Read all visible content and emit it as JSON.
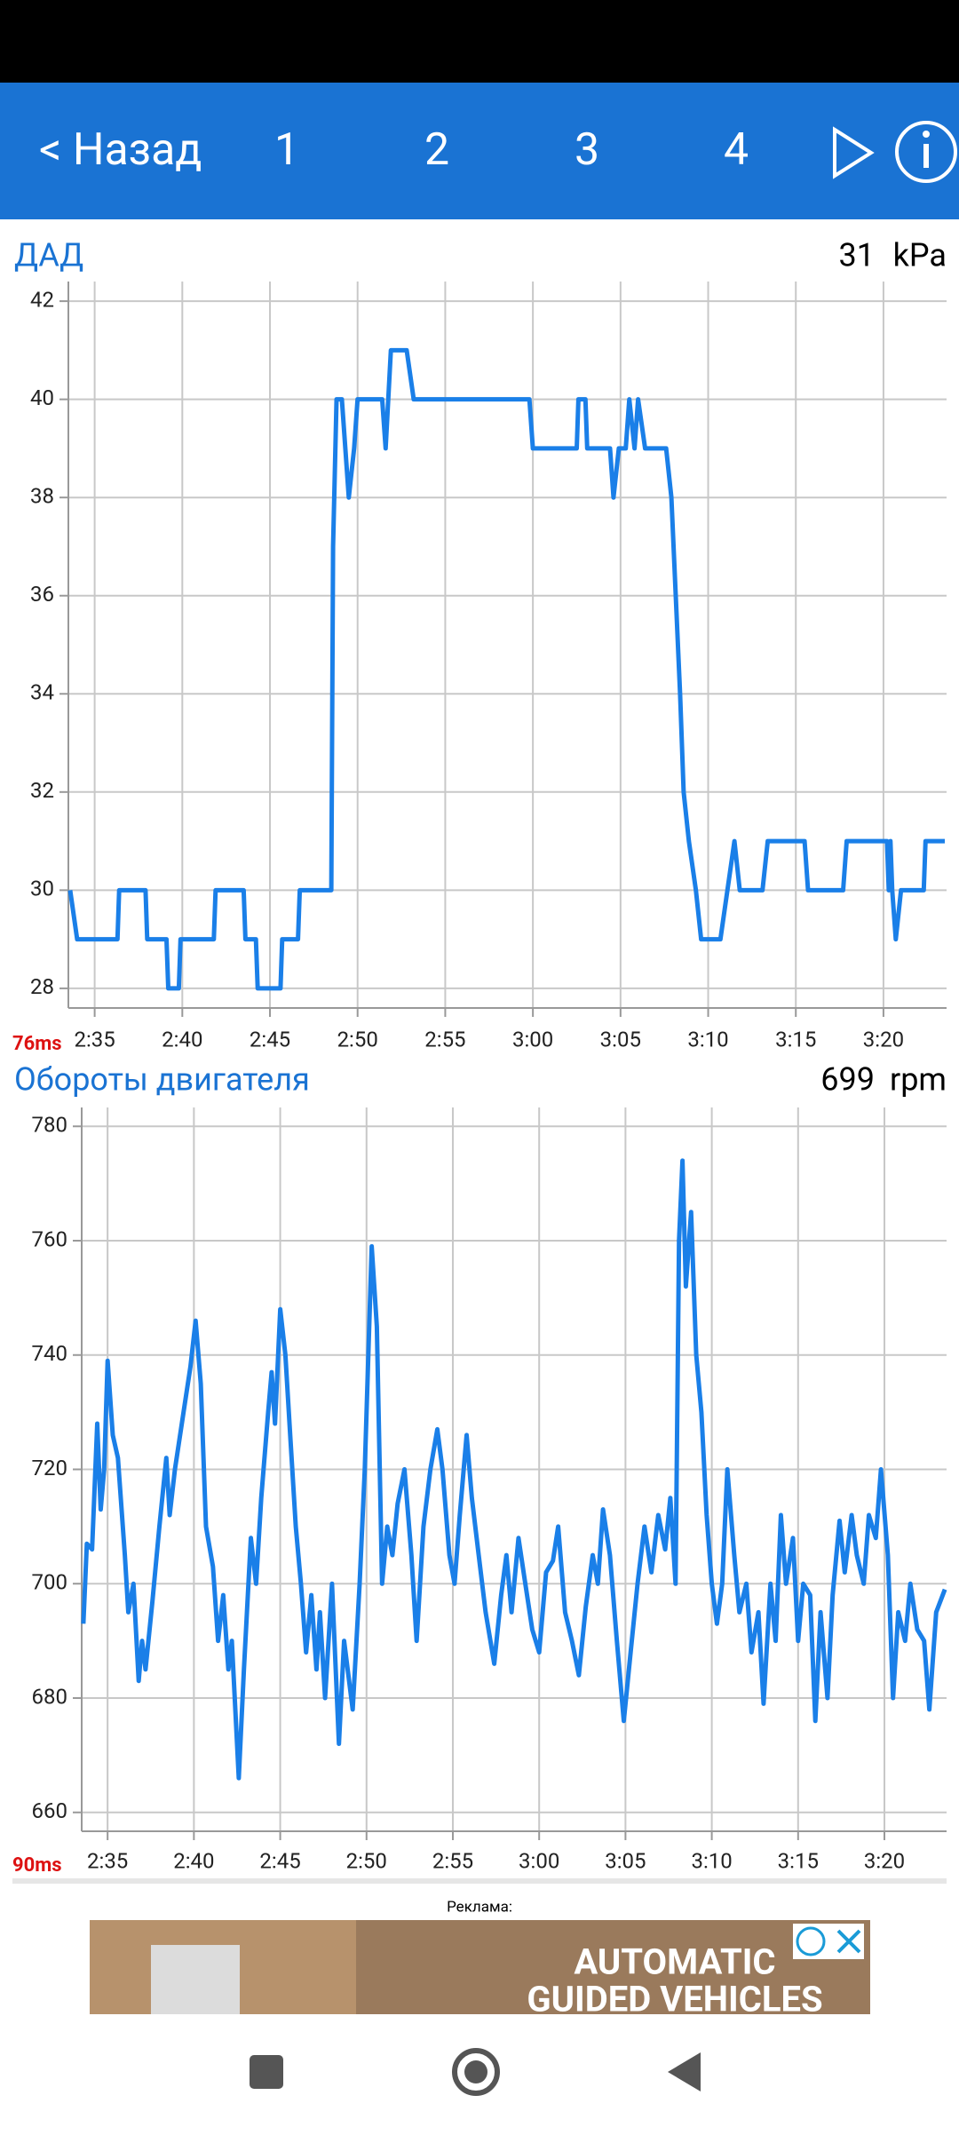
{
  "header": {
    "back": "< Назад",
    "tabs": [
      "1",
      "2",
      "3",
      "4"
    ]
  },
  "chart_data": [
    {
      "type": "line",
      "title": "ДАД",
      "current_value": 31,
      "unit": "kPa",
      "latency": "76ms",
      "color": "#1a7fe8",
      "x": [
        153.6,
        154.0,
        156.3,
        156.4,
        157.9,
        158.0,
        159.1,
        159.2,
        159.8,
        159.9,
        161.8,
        161.9,
        163.5,
        163.6,
        164.2,
        164.3,
        165.6,
        165.7,
        166.6,
        166.7,
        168.5,
        168.6,
        168.8,
        169.1,
        169.5,
        169.8,
        170.0,
        170.3,
        171.4,
        171.6,
        171.9,
        172.8,
        173.2,
        173.3,
        179.8,
        180.0,
        182.5,
        182.6,
        183.0,
        183.1,
        184.4,
        184.6,
        184.9,
        185.3,
        185.5,
        185.8,
        186.0,
        186.4,
        187.6,
        187.9,
        188.4,
        188.6,
        188.9,
        189.3,
        189.6,
        190.7,
        191.1,
        191.5,
        191.8,
        193.1,
        193.4,
        195.5,
        195.7,
        197.7,
        197.9,
        200.2,
        200.3,
        200.4,
        200.5,
        200.7,
        201.0,
        202.3,
        202.4,
        203.5
      ],
      "values": [
        30,
        29,
        29,
        30,
        30,
        29,
        29,
        28,
        28,
        29,
        29,
        30,
        30,
        29,
        29,
        28,
        28,
        29,
        29,
        30,
        30,
        37,
        40,
        40,
        38,
        39,
        40,
        40,
        40,
        39,
        41,
        41,
        40,
        40,
        40,
        39,
        39,
        40,
        40,
        39,
        39,
        38,
        39,
        39,
        40,
        39,
        40,
        39,
        39,
        38,
        34,
        32,
        31,
        30,
        29,
        29,
        30,
        31,
        30,
        30,
        31,
        31,
        30,
        30,
        31,
        31,
        30,
        31,
        30,
        29,
        30,
        30,
        31,
        31
      ],
      "xlim": [
        153.5,
        203.6
      ],
      "ylim": [
        27.6,
        42.4
      ],
      "xticks": [
        {
          "value": 155,
          "label": "2:35"
        },
        {
          "value": 160,
          "label": "2:40"
        },
        {
          "value": 165,
          "label": "2:45"
        },
        {
          "value": 170,
          "label": "2:50"
        },
        {
          "value": 175,
          "label": "2:55"
        },
        {
          "value": 180,
          "label": "3:00"
        },
        {
          "value": 185,
          "label": "3:05"
        },
        {
          "value": 190,
          "label": "3:10"
        },
        {
          "value": 195,
          "label": "3:15"
        },
        {
          "value": 200,
          "label": "3:20"
        }
      ],
      "yticks": [
        28,
        30,
        32,
        34,
        36,
        38,
        40,
        42
      ],
      "grid": true
    },
    {
      "type": "line",
      "title": "Обороты двигателя",
      "current_value": 699,
      "unit": "rpm",
      "latency": "90ms",
      "color": "#1a7fe8",
      "x": [
        153.6,
        153.8,
        154.1,
        154.4,
        154.6,
        154.8,
        155.0,
        155.3,
        155.6,
        156.0,
        156.2,
        156.5,
        156.8,
        157.0,
        157.2,
        157.6,
        158.0,
        158.4,
        158.6,
        158.9,
        159.4,
        159.8,
        160.1,
        160.4,
        160.7,
        161.1,
        161.4,
        161.7,
        162.0,
        162.2,
        162.6,
        162.9,
        163.3,
        163.6,
        163.9,
        164.3,
        164.5,
        164.7,
        165.0,
        165.3,
        165.6,
        165.9,
        166.2,
        166.5,
        166.8,
        167.1,
        167.3,
        167.6,
        168.0,
        168.4,
        168.7,
        169.2,
        169.6,
        169.9,
        170.3,
        170.6,
        170.9,
        171.2,
        171.5,
        171.8,
        172.2,
        172.6,
        172.9,
        173.3,
        173.7,
        174.1,
        174.4,
        174.8,
        175.1,
        175.4,
        175.8,
        176.1,
        176.5,
        176.9,
        177.4,
        177.8,
        178.1,
        178.4,
        178.8,
        179.2,
        179.6,
        180.0,
        180.4,
        180.8,
        181.1,
        181.5,
        181.9,
        182.3,
        182.7,
        183.1,
        183.4,
        183.7,
        184.1,
        184.5,
        184.9,
        185.3,
        185.7,
        186.1,
        186.5,
        186.9,
        187.3,
        187.6,
        187.9,
        188.1,
        188.3,
        188.5,
        188.8,
        189.1,
        189.4,
        189.7,
        190.0,
        190.3,
        190.6,
        190.9,
        191.3,
        191.6,
        192.0,
        192.3,
        192.7,
        193.0,
        193.4,
        193.7,
        194.0,
        194.3,
        194.7,
        195.0,
        195.3,
        195.7,
        196.0,
        196.3,
        196.7,
        197.0,
        197.4,
        197.7,
        198.1,
        198.4,
        198.8,
        199.1,
        199.5,
        199.8,
        200.2,
        200.5,
        200.8,
        201.2,
        201.5,
        201.9,
        202.3,
        202.6,
        203.0,
        203.5
      ],
      "values": [
        693,
        707,
        706,
        728,
        713,
        720,
        739,
        726,
        722,
        705,
        695,
        700,
        683,
        690,
        685,
        697,
        710,
        722,
        712,
        720,
        730,
        738,
        746,
        735,
        710,
        703,
        690,
        698,
        685,
        690,
        666,
        685,
        708,
        700,
        715,
        730,
        737,
        728,
        748,
        740,
        725,
        710,
        700,
        688,
        698,
        685,
        695,
        680,
        700,
        672,
        690,
        678,
        700,
        720,
        759,
        745,
        700,
        710,
        705,
        714,
        720,
        705,
        690,
        710,
        720,
        727,
        720,
        705,
        700,
        712,
        726,
        715,
        705,
        695,
        686,
        698,
        705,
        695,
        708,
        700,
        692,
        688,
        702,
        704,
        710,
        695,
        690,
        684,
        696,
        705,
        700,
        713,
        705,
        690,
        676,
        688,
        700,
        710,
        702,
        712,
        706,
        715,
        700,
        760,
        774,
        752,
        765,
        740,
        730,
        712,
        700,
        693,
        700,
        720,
        705,
        695,
        700,
        688,
        695,
        679,
        700,
        690,
        712,
        700,
        708,
        690,
        700,
        698,
        676,
        695,
        680,
        698,
        711,
        702,
        712,
        705,
        700,
        712,
        708,
        720,
        705,
        680,
        695,
        690,
        700,
        692,
        690,
        678,
        695,
        699
      ],
      "xlim": [
        153.5,
        203.6
      ],
      "ylim": [
        656.7,
        783.3
      ],
      "xticks": [
        {
          "value": 155,
          "label": "2:35"
        },
        {
          "value": 160,
          "label": "2:40"
        },
        {
          "value": 165,
          "label": "2:45"
        },
        {
          "value": 170,
          "label": "2:50"
        },
        {
          "value": 175,
          "label": "2:55"
        },
        {
          "value": 180,
          "label": "3:00"
        },
        {
          "value": 185,
          "label": "3:05"
        },
        {
          "value": 190,
          "label": "3:10"
        },
        {
          "value": 195,
          "label": "3:15"
        },
        {
          "value": 200,
          "label": "3:20"
        }
      ],
      "yticks": [
        660,
        680,
        700,
        720,
        740,
        760,
        780
      ],
      "grid": true
    }
  ],
  "ad": {
    "label": "Реклама:",
    "headline_1": "AUTOMATIC",
    "headline_2": "GUIDED VEHICLES"
  }
}
